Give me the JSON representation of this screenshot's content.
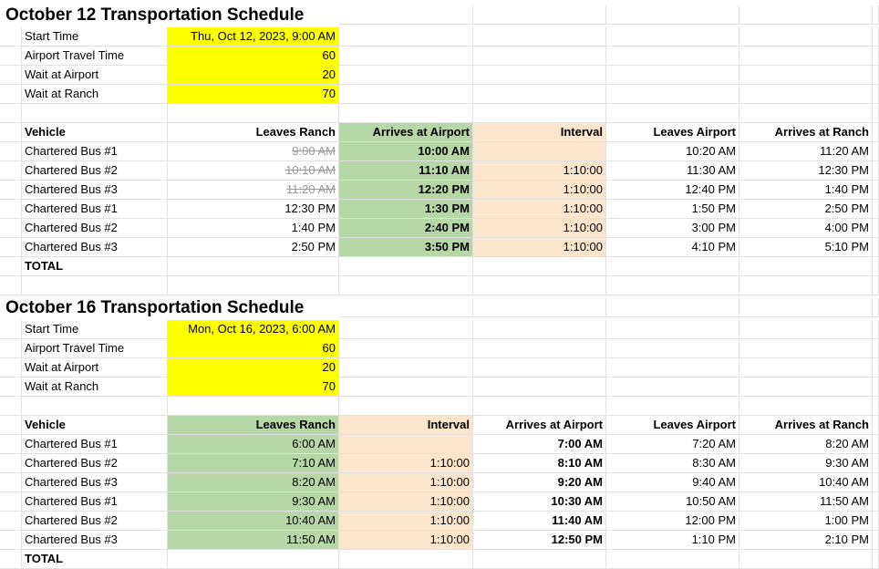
{
  "colors": {
    "yellow": "#ffff00",
    "green": "#b6d7a8",
    "peach": "#fce5cd"
  },
  "schedule1": {
    "title": "October 12 Transportation Schedule",
    "params": [
      {
        "label": "Start Time",
        "value": "Thu, Oct 12, 2023, 9:00 AM"
      },
      {
        "label": "Airport Travel Time",
        "value": "60"
      },
      {
        "label": "Wait at Airport",
        "value": "20"
      },
      {
        "label": "Wait at Ranch",
        "value": "70"
      }
    ],
    "headers": [
      "Vehicle",
      "Leaves Ranch",
      "Arrives at Airport",
      "Interval",
      "Leaves Airport",
      "Arrives at Ranch"
    ],
    "rows": [
      {
        "vehicle": "Chartered Bus #1",
        "leaves_ranch": "9:00 AM",
        "arrives_airport": "10:00 AM",
        "interval": "",
        "leaves_airport": "10:20 AM",
        "arrives_ranch": "11:20 AM"
      },
      {
        "vehicle": "Chartered Bus #2",
        "leaves_ranch": "10:10 AM",
        "arrives_airport": "11:10 AM",
        "interval": "1:10:00",
        "leaves_airport": "11:30 AM",
        "arrives_ranch": "12:30 PM"
      },
      {
        "vehicle": "Chartered Bus #3",
        "leaves_ranch": "11:20 AM",
        "arrives_airport": "12:20 PM",
        "interval": "1:10:00",
        "leaves_airport": "12:40 PM",
        "arrives_ranch": "1:40 PM"
      },
      {
        "vehicle": "Chartered Bus #1",
        "leaves_ranch": "12:30 PM",
        "arrives_airport": "1:30 PM",
        "interval": "1:10:00",
        "leaves_airport": "1:50 PM",
        "arrives_ranch": "2:50 PM"
      },
      {
        "vehicle": "Chartered Bus #2",
        "leaves_ranch": "1:40 PM",
        "arrives_airport": "2:40 PM",
        "interval": "1:10:00",
        "leaves_airport": "3:00 PM",
        "arrives_ranch": "4:00 PM"
      },
      {
        "vehicle": "Chartered Bus #3",
        "leaves_ranch": "2:50 PM",
        "arrives_airport": "3:50 PM",
        "interval": "1:10:00",
        "leaves_airport": "4:10 PM",
        "arrives_ranch": "5:10 PM"
      }
    ],
    "total_label": "TOTAL"
  },
  "schedule2": {
    "title": "October 16 Transportation Schedule",
    "params": [
      {
        "label": "Start Time",
        "value": "Mon, Oct 16, 2023, 6:00 AM"
      },
      {
        "label": "Airport Travel Time",
        "value": "60"
      },
      {
        "label": "Wait at Airport",
        "value": "20"
      },
      {
        "label": "Wait at Ranch",
        "value": "70"
      }
    ],
    "headers": [
      "Vehicle",
      "Leaves Ranch",
      "Interval",
      "Arrives at Airport",
      "Leaves Airport",
      "Arrives at Ranch"
    ],
    "rows": [
      {
        "vehicle": "Chartered Bus #1",
        "leaves_ranch": "6:00 AM",
        "interval": "",
        "arrives_airport": "7:00 AM",
        "leaves_airport": "7:20 AM",
        "arrives_ranch": "8:20 AM"
      },
      {
        "vehicle": "Chartered Bus #2",
        "leaves_ranch": "7:10 AM",
        "interval": "1:10:00",
        "arrives_airport": "8:10 AM",
        "leaves_airport": "8:30 AM",
        "arrives_ranch": "9:30 AM"
      },
      {
        "vehicle": "Chartered Bus #3",
        "leaves_ranch": "8:20 AM",
        "interval": "1:10:00",
        "arrives_airport": "9:20 AM",
        "leaves_airport": "9:40 AM",
        "arrives_ranch": "10:40 AM"
      },
      {
        "vehicle": "Chartered Bus #1",
        "leaves_ranch": "9:30 AM",
        "interval": "1:10:00",
        "arrives_airport": "10:30 AM",
        "leaves_airport": "10:50 AM",
        "arrives_ranch": "11:50 AM"
      },
      {
        "vehicle": "Chartered Bus #2",
        "leaves_ranch": "10:40 AM",
        "interval": "1:10:00",
        "arrives_airport": "11:40 AM",
        "leaves_airport": "12:00 PM",
        "arrives_ranch": "1:00 PM"
      },
      {
        "vehicle": "Chartered Bus #3",
        "leaves_ranch": "11:50 AM",
        "interval": "1:10:00",
        "arrives_airport": "12:50 PM",
        "leaves_airport": "1:10 PM",
        "arrives_ranch": "2:10 PM"
      }
    ],
    "total_label": "TOTAL"
  }
}
